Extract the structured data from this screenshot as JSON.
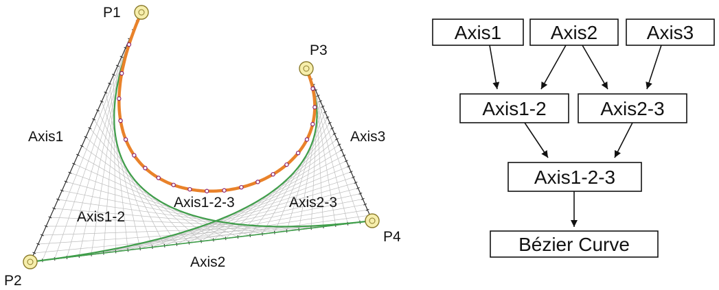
{
  "diagram": {
    "points": [
      {
        "label": "P1"
      },
      {
        "label": "P2"
      },
      {
        "label": "P3"
      },
      {
        "label": "P4"
      }
    ],
    "edge_labels": {
      "axis1": "Axis1",
      "axis2": "Axis2",
      "axis3": "Axis3",
      "axis12": "Axis1-2",
      "axis23": "Axis2-3",
      "axis123": "Axis1-2-3"
    },
    "flow": {
      "axis1": "Axis1",
      "axis2": "Axis2",
      "axis3": "Axis3",
      "axis12": "Axis1-2",
      "axis23": "Axis2-3",
      "axis123": "Axis1-2-3",
      "curve": "Bézier Curve"
    },
    "colors": {
      "curve": "#e9822a",
      "mid_curves": "#3f9e4a",
      "control_point_fill": "#f6eeac",
      "control_point_stroke": "#8a7a2a",
      "sample_dot": "#8b1f6c",
      "mesh": "#bdbdbd"
    }
  }
}
